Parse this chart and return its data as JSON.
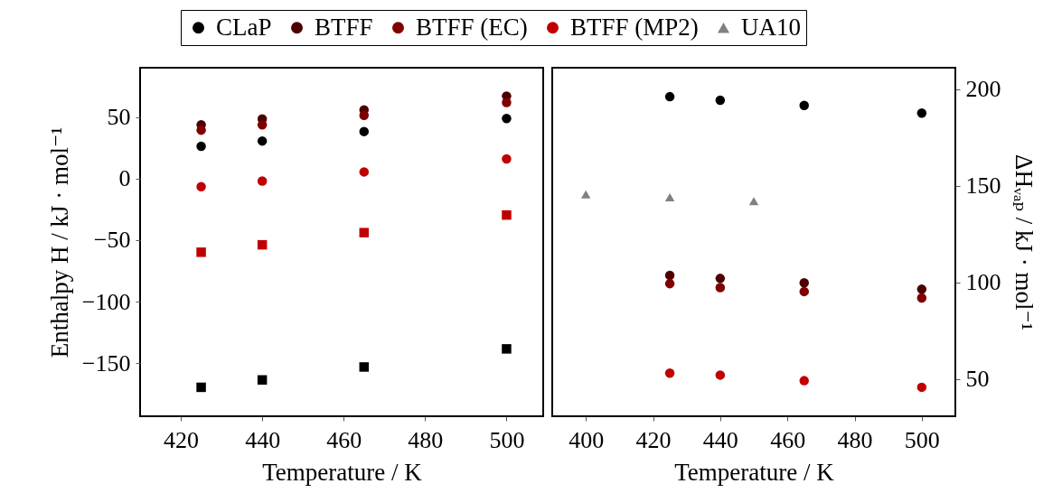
{
  "chart_data": [
    {
      "type": "scatter",
      "xlabel": "Temperature / K",
      "ylabel": "Enthalpy H / kJ · mol⁻¹",
      "xlim": [
        410,
        509
      ],
      "xticks": [
        420,
        440,
        460,
        480,
        500
      ],
      "ylim": [
        -193,
        90
      ],
      "yticks": [
        -150,
        -100,
        -50,
        0,
        50
      ],
      "grid": false,
      "legend": "top",
      "x": [
        425,
        440,
        465,
        500
      ],
      "series": [
        {
          "name": "CLaP",
          "color": "#000000",
          "marker": "circle",
          "values": [
            26.2,
            30.5,
            38.2,
            48.7
          ]
        },
        {
          "name": "BTFF",
          "color": "#4d0000",
          "marker": "circle",
          "values": [
            43.6,
            48.4,
            55.8,
            67
          ]
        },
        {
          "name": "BTFF (EC)",
          "color": "#800000",
          "marker": "circle",
          "values": [
            39.3,
            43.6,
            51.3,
            61.8
          ]
        },
        {
          "name": "BTFF (MP2)",
          "color": "#c00000",
          "marker": "circle",
          "values": [
            -6.6,
            -2,
            5.4,
            16
          ]
        },
        {
          "color": "#c00000",
          "marker": "square",
          "values": [
            -59.8,
            -53.8,
            -43.9,
            -29.6
          ]
        },
        {
          "color": "#000000",
          "marker": "square",
          "values": [
            -169.5,
            -163.5,
            -153,
            -138.3
          ]
        }
      ]
    },
    {
      "type": "scatter",
      "xlabel": "Temperature / K",
      "y2label": "ΔHᵥₐₚ / kJ · mol⁻¹",
      "xlim": [
        390,
        510
      ],
      "xticks": [
        400,
        420,
        440,
        460,
        480,
        500
      ],
      "y2lim": [
        30.7,
        211
      ],
      "y2ticks": [
        50,
        100,
        150,
        200
      ],
      "grid": false,
      "legend": "top",
      "x": [
        425,
        440,
        465,
        500
      ],
      "series": [
        {
          "name": "CLaP",
          "color": "#000000",
          "marker": "circle",
          "axis": "y2",
          "values": [
            196,
            194.2,
            191.5,
            187.5
          ]
        },
        {
          "name": "BTFF",
          "color": "#4d0000",
          "marker": "circle",
          "axis": "y2",
          "values": [
            103.6,
            102,
            99.7,
            96.4
          ]
        },
        {
          "name": "BTFF (EC)",
          "color": "#800000",
          "marker": "circle",
          "axis": "y2",
          "values": [
            99.3,
            97.3,
            95.2,
            91.9
          ]
        },
        {
          "name": "BTFF (MP2)",
          "color": "#c00000",
          "marker": "circle",
          "axis": "y2",
          "values": [
            53,
            52,
            49.1,
            45.7
          ]
        },
        {
          "name": "UA10",
          "color": "#808080",
          "marker": "triangle",
          "axis": "y2",
          "x": [
            400,
            425,
            450
          ],
          "values": [
            145.5,
            144,
            142
          ]
        }
      ]
    }
  ]
}
